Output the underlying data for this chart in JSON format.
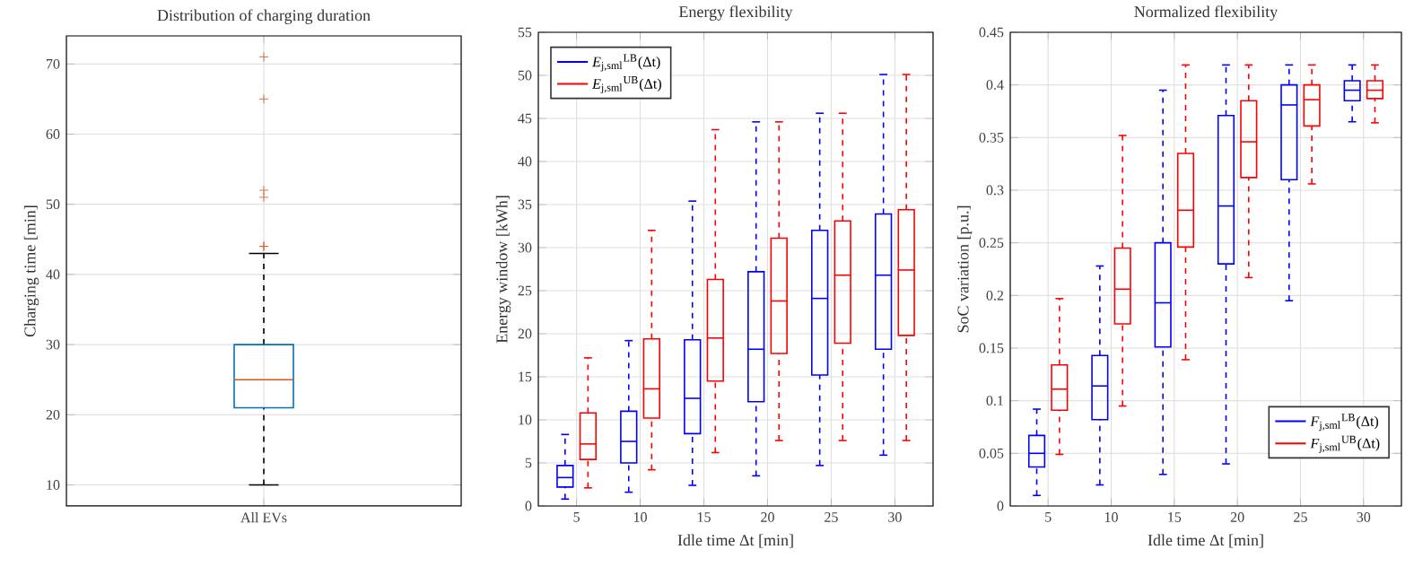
{
  "chart_data": [
    {
      "type": "box",
      "title": "Distribution of charging duration",
      "ylabel": "Charging time [min]",
      "categories": [
        "All EVs"
      ],
      "ylim": [
        7,
        74
      ],
      "yticks": [
        10,
        20,
        30,
        40,
        50,
        60,
        70
      ],
      "grid": true,
      "marker": "cross",
      "series": [
        {
          "color": "#0072bd",
          "boxes": [
            {
              "low": 10,
              "q1": 21,
              "median": 25,
              "q3": 30,
              "high": 43,
              "outliers": [
                44,
                44,
                51,
                52,
                65,
                71
              ]
            }
          ]
        }
      ]
    },
    {
      "type": "box",
      "title": "Energy flexibility",
      "xlabel": "Idle time Δt [min]",
      "ylabel": "Energy window [kWh]",
      "categories": [
        "5",
        "10",
        "15",
        "20",
        "25",
        "30"
      ],
      "ylim": [
        0,
        55
      ],
      "yticks": [
        0,
        5,
        10,
        15,
        20,
        25,
        30,
        35,
        40,
        45,
        50,
        55
      ],
      "grid": true,
      "legend": "top left",
      "series": [
        {
          "name": "*E*$_{j,sml}$$^{LB}$(Δt)",
          "color": "#0000ff",
          "boxes": [
            {
              "low": 0.8,
              "q1": 2.2,
              "median": 3.3,
              "q3": 4.7,
              "high": 8.3
            },
            {
              "low": 1.6,
              "q1": 5.0,
              "median": 7.5,
              "q3": 11.0,
              "high": 19.2
            },
            {
              "low": 2.4,
              "q1": 8.4,
              "median": 12.5,
              "q3": 19.3,
              "high": 35.4
            },
            {
              "low": 3.5,
              "q1": 12.1,
              "median": 18.2,
              "q3": 27.2,
              "high": 44.6
            },
            {
              "low": 4.7,
              "q1": 15.2,
              "median": 24.1,
              "q3": 32.0,
              "high": 45.6
            },
            {
              "low": 5.9,
              "q1": 18.2,
              "median": 26.8,
              "q3": 33.9,
              "high": 50.1
            }
          ]
        },
        {
          "name": "*E*$_{j,sml}$$^{UB}$(Δt)",
          "color": "#ff0000",
          "boxes": [
            {
              "low": 2.1,
              "q1": 5.4,
              "median": 7.2,
              "q3": 10.8,
              "high": 17.2
            },
            {
              "low": 4.2,
              "q1": 10.2,
              "median": 13.6,
              "q3": 19.4,
              "high": 32.0
            },
            {
              "low": 6.2,
              "q1": 14.5,
              "median": 19.5,
              "q3": 26.3,
              "high": 43.7
            },
            {
              "low": 7.6,
              "q1": 17.7,
              "median": 23.8,
              "q3": 31.1,
              "high": 44.6
            },
            {
              "low": 7.6,
              "q1": 18.9,
              "median": 26.8,
              "q3": 33.1,
              "high": 45.6
            },
            {
              "low": 7.6,
              "q1": 19.8,
              "median": 27.4,
              "q3": 34.4,
              "high": 50.1
            }
          ]
        }
      ]
    },
    {
      "type": "box",
      "title": "Normalized flexibility",
      "xlabel": "Idle time Δt [min]",
      "ylabel": "SoC variation [p.u.]",
      "categories": [
        "5",
        "10",
        "15",
        "20",
        "25",
        "30"
      ],
      "ylim": [
        0,
        0.45
      ],
      "yticks": [
        0,
        0.05,
        0.1,
        0.15,
        0.2,
        0.25,
        0.3,
        0.35,
        0.4,
        0.45
      ],
      "grid": true,
      "legend": "bottom right",
      "series": [
        {
          "name": "*F*$_{j,sml}$$^{LB}$(Δt)",
          "color": "#0000ff",
          "boxes": [
            {
              "low": 0.01,
              "q1": 0.037,
              "median": 0.05,
              "q3": 0.067,
              "high": 0.092
            },
            {
              "low": 0.02,
              "q1": 0.082,
              "median": 0.114,
              "q3": 0.143,
              "high": 0.228
            },
            {
              "low": 0.03,
              "q1": 0.151,
              "median": 0.193,
              "q3": 0.25,
              "high": 0.395
            },
            {
              "low": 0.04,
              "q1": 0.23,
              "median": 0.285,
              "q3": 0.371,
              "high": 0.419
            },
            {
              "low": 0.195,
              "q1": 0.31,
              "median": 0.381,
              "q3": 0.4,
              "high": 0.419
            },
            {
              "low": 0.365,
              "q1": 0.385,
              "median": 0.395,
              "q3": 0.404,
              "high": 0.419
            }
          ]
        },
        {
          "name": "*F*$_{j,sml}$$^{UB}$(Δt)",
          "color": "#ff0000",
          "boxes": [
            {
              "low": 0.049,
              "q1": 0.091,
              "median": 0.111,
              "q3": 0.134,
              "high": 0.197
            },
            {
              "low": 0.095,
              "q1": 0.173,
              "median": 0.206,
              "q3": 0.245,
              "high": 0.352
            },
            {
              "low": 0.139,
              "q1": 0.246,
              "median": 0.281,
              "q3": 0.335,
              "high": 0.419
            },
            {
              "low": 0.217,
              "q1": 0.312,
              "median": 0.346,
              "q3": 0.385,
              "high": 0.419
            },
            {
              "low": 0.306,
              "q1": 0.361,
              "median": 0.386,
              "q3": 0.4,
              "high": 0.419
            },
            {
              "low": 0.364,
              "q1": 0.387,
              "median": 0.395,
              "q3": 0.404,
              "high": 0.419
            }
          ]
        }
      ]
    }
  ]
}
